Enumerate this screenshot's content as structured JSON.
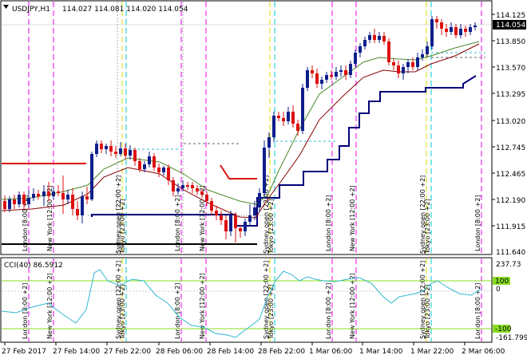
{
  "header": {
    "symbol": "USDJPY,H1",
    "ohlc": "114.027 114.081 114.020 114.054"
  },
  "price_axis": {
    "current_price": "114.054",
    "labels": [
      "114.125",
      "113.850",
      "113.570",
      "113.295",
      "113.020",
      "112.745",
      "112.465",
      "112.190",
      "111.915",
      "111.640"
    ]
  },
  "indicator": {
    "title": "CCI(40) 86.5912",
    "axis_labels": [
      "237.73",
      "100",
      "0",
      "-100",
      "-161.7994"
    ]
  },
  "time_axis": {
    "labels": [
      "27 Feb 2017",
      "27 Feb 14:00",
      "27 Feb 22:00",
      "28 Feb 06:00",
      "28 Feb 14:00",
      "28 Feb 22:00",
      "1 Mar 06:00",
      "1 Mar 14:00",
      "1 Mar 22:00",
      "2 Mar 06:00"
    ]
  },
  "sessions": [
    {
      "label": "London   [8:00 +2]",
      "color": "#ee00ee"
    },
    {
      "label": "New York   [12:00 +2]",
      "color": "#ee00ee"
    },
    {
      "label": "Sydney open   [22:00 +2]",
      "color": "#dddd00"
    },
    {
      "label": "Tokyo   [23:00 +2]",
      "color": "#00cccc"
    }
  ],
  "colors": {
    "bull": "#0e1f8a",
    "bear": "#dd1111",
    "ma_fast": "#880000",
    "ma_slow": "#4a8a2a",
    "trail": "#00007a",
    "cci": "#30b8d0",
    "cci_level": "#88dd22"
  }
}
